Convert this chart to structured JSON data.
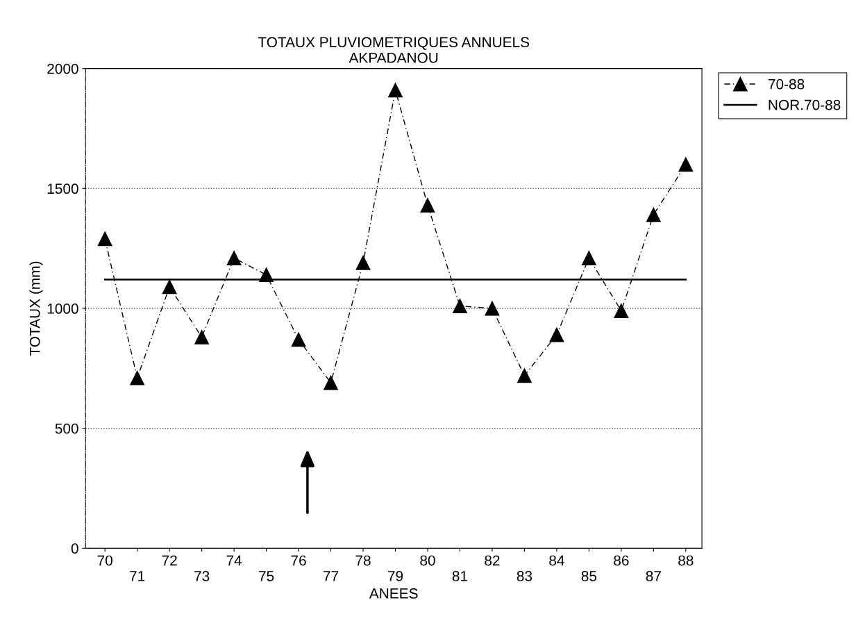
{
  "chart_data": {
    "type": "line",
    "title": "TOTAUX PLUVIOMETRIQUES ANNUELS\nAKPADANOU",
    "xlabel": "ANEES",
    "ylabel": "TOTAUX (mm)",
    "categories": [
      "70",
      "71",
      "72",
      "73",
      "74",
      "75",
      "76",
      "77",
      "78",
      "79",
      "80",
      "81",
      "82",
      "83",
      "84",
      "85",
      "86",
      "87",
      "88"
    ],
    "series": [
      {
        "name": "70-88",
        "color": "#000000",
        "marker": "triangle",
        "line_style": "dashed",
        "values": [
          1290,
          710,
          1090,
          880,
          1210,
          1140,
          870,
          690,
          1190,
          1910,
          1430,
          1010,
          1000,
          720,
          890,
          1210,
          990,
          1390,
          1600
        ]
      },
      {
        "name": "NOR.70-88",
        "color": "#000000",
        "marker": "none",
        "line_style": "solid",
        "values": [
          1120,
          1120,
          1120,
          1120,
          1120,
          1120,
          1120,
          1120,
          1120,
          1120,
          1120,
          1120,
          1120,
          1120,
          1120,
          1120,
          1120,
          1120,
          1120
        ]
      }
    ],
    "ylim": [
      0,
      2000
    ],
    "yticks": [
      0,
      500,
      1000,
      1500,
      2000
    ],
    "grid": "y",
    "legend": "top right"
  }
}
